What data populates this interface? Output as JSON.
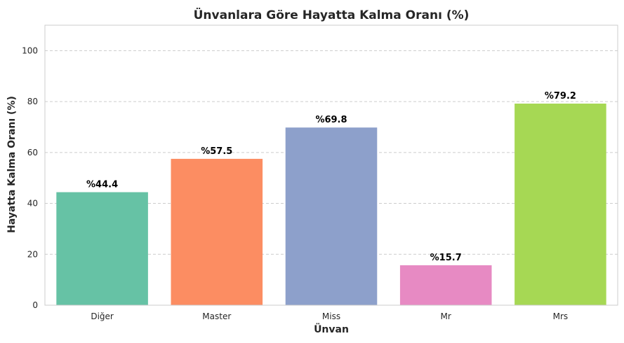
{
  "chart_data": {
    "type": "bar",
    "title": "Ünvanlara Göre Hayatta Kalma Oranı (%)",
    "xlabel": "Ünvan",
    "ylabel": "Hayatta Kalma Oranı (%)",
    "categories": [
      "Diğer",
      "Master",
      "Miss",
      "Mr",
      "Mrs"
    ],
    "values": [
      44.4,
      57.5,
      69.8,
      15.7,
      79.2
    ],
    "value_labels": [
      "%44.4",
      "%57.5",
      "%69.8",
      "%15.7",
      "%79.2"
    ],
    "colors": [
      "#66c2a5",
      "#fc8d62",
      "#8da0cb",
      "#e78ac3",
      "#a6d854"
    ],
    "ylim": [
      0,
      110
    ],
    "yticks": [
      "0",
      "20",
      "40",
      "60",
      "80",
      "100"
    ],
    "grid": "y-dashed",
    "legend": "none"
  }
}
